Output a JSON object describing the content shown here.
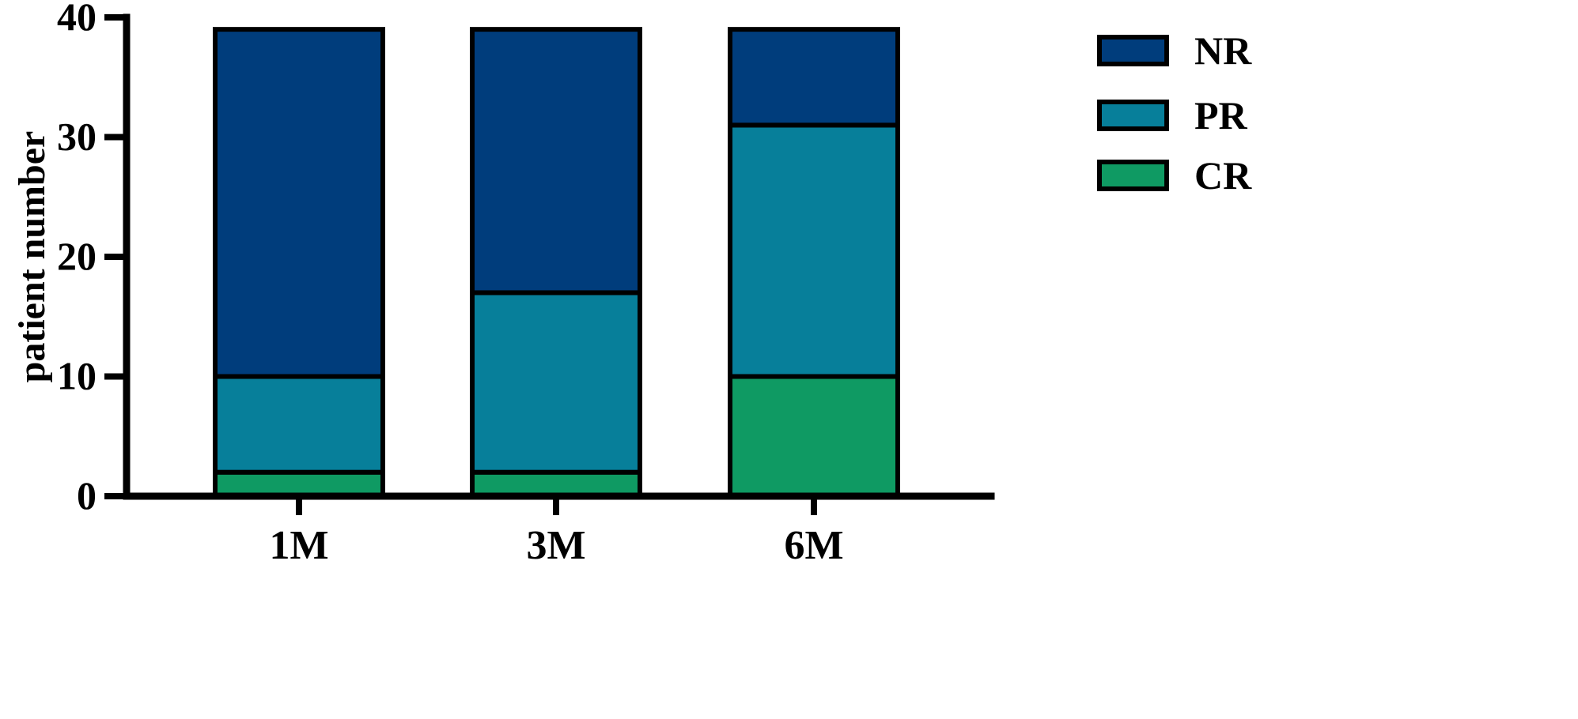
{
  "chart_data": {
    "type": "bar",
    "stacked": true,
    "title": "",
    "xlabel": "",
    "ylabel": "patient number",
    "categories": [
      "1M",
      "3M",
      "6M"
    ],
    "ylim": [
      0,
      40
    ],
    "yticks": [
      0,
      10,
      20,
      30,
      40
    ],
    "ytick_labels": [
      "0",
      "10",
      "20",
      "30",
      "40"
    ],
    "grid": false,
    "legend_position": "right",
    "series": [
      {
        "name": "CR",
        "color": "#0f9a63",
        "values": [
          2,
          2,
          10
        ]
      },
      {
        "name": "PR",
        "color": "#077f9a",
        "values": [
          8,
          15,
          21
        ]
      },
      {
        "name": "NR",
        "color": "#003d7c",
        "values": [
          29,
          22,
          8
        ]
      }
    ],
    "legend_order": [
      "NR",
      "PR",
      "CR"
    ]
  }
}
